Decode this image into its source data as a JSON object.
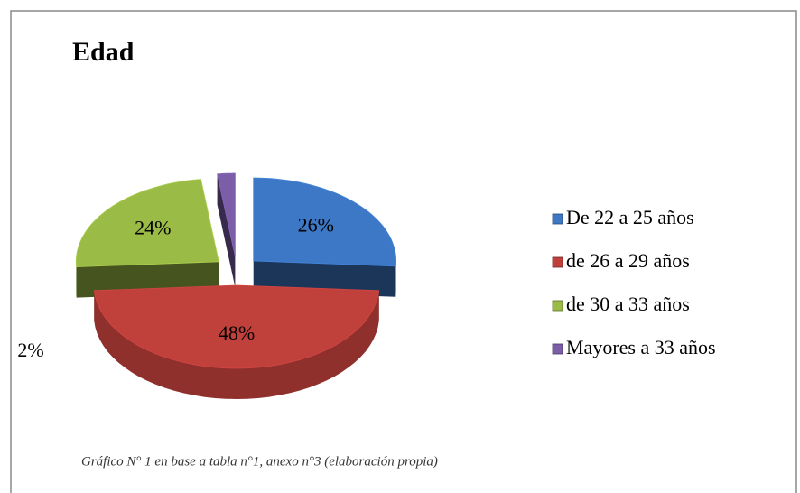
{
  "chart_data": {
    "type": "pie",
    "title": "Edad",
    "annotation": "Gráfico N° 1 en base a tabla n°1, anexo n°3 (elaboración propia)",
    "categories": [
      "De 22 a 25 años",
      "de 26 a 29 años",
      "de 30 a 33 años",
      "Mayores a 33 años"
    ],
    "values": [
      26,
      48,
      24,
      2
    ],
    "value_labels": [
      "26%",
      "48%",
      "24%",
      "2%"
    ],
    "colors": [
      "#3d78c6",
      "#c0403c",
      "#9bbb47",
      "#7b5ea7"
    ],
    "legend": "right"
  }
}
